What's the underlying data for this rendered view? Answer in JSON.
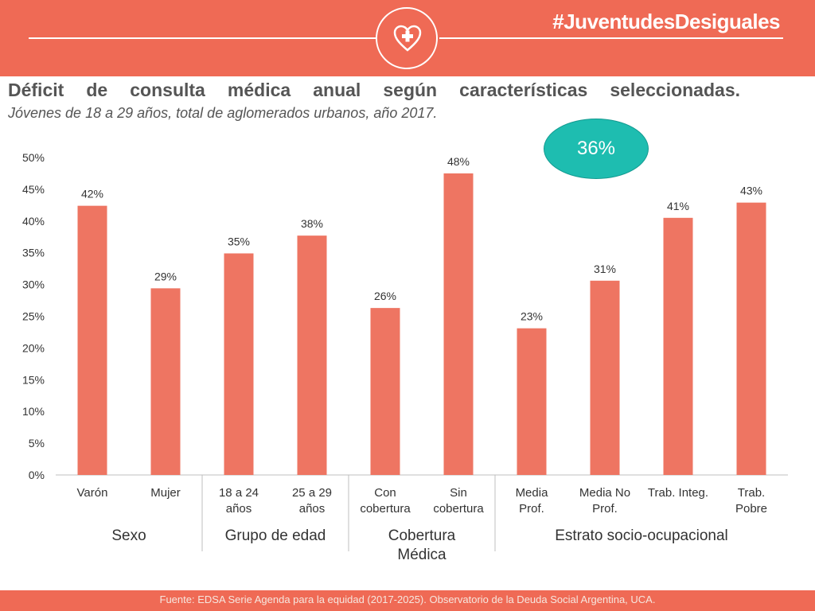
{
  "header": {
    "hashtag": "#JuventudesDesiguales",
    "logo_icon": "heart-cross-icon",
    "bg_color": "#ef6a55"
  },
  "title": "Déficit de consulta médica anual según características seleccionadas.",
  "subtitle": "Jóvenes de 18 a 29 años, total de aglomerados urbanos, año 2017.",
  "badge": {
    "label": "36%",
    "color": "#1ebdb0"
  },
  "footer": "Fuente: EDSA Serie Agenda para la equidad (2017-2025). Observatorio de la Deuda Social Argentina, UCA.",
  "chart_data": {
    "type": "bar",
    "bar_color": "#ee7562",
    "ylim": [
      0,
      50
    ],
    "y_ticks": [
      "0%",
      "5%",
      "10%",
      "15%",
      "20%",
      "25%",
      "30%",
      "35%",
      "40%",
      "45%",
      "50%"
    ],
    "grid": false,
    "categories": [
      [
        "Varón"
      ],
      [
        "Mujer"
      ],
      [
        "18 a 24",
        "años"
      ],
      [
        "25 a 29",
        "años"
      ],
      [
        "Con",
        "cobertura"
      ],
      [
        "Sin",
        "cobertura"
      ],
      [
        "Media",
        "Prof."
      ],
      [
        "Media No",
        "Prof."
      ],
      [
        "Trab. Integ."
      ],
      [
        "Trab.",
        "Pobre"
      ]
    ],
    "values": [
      42.4,
      29.4,
      34.9,
      37.7,
      26.3,
      47.5,
      23.1,
      30.6,
      40.5,
      42.9
    ],
    "value_labels": [
      "42%",
      "29%",
      "35%",
      "38%",
      "26%",
      "48%",
      "23%",
      "31%",
      "41%",
      "43%"
    ],
    "groups": [
      {
        "label": [
          "Sexo"
        ],
        "span": [
          0,
          1
        ]
      },
      {
        "label": [
          "Grupo de edad"
        ],
        "span": [
          2,
          3
        ]
      },
      {
        "label": [
          "Cobertura",
          "Médica"
        ],
        "span": [
          4,
          5
        ]
      },
      {
        "label": [
          "Estrato socio-ocupacional"
        ],
        "span": [
          6,
          9
        ]
      }
    ]
  }
}
